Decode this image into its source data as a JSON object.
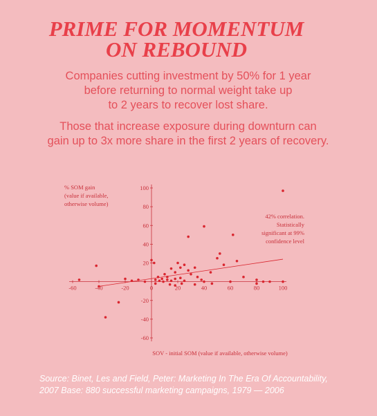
{
  "title_lines": [
    "PRIME FOR MOMENTUM",
    "ON REBOUND"
  ],
  "paragraphs": [
    [
      "Companies cutting investment by 50% for 1 year",
      "before returning to normal weight take up",
      "to 2 years to recover lost share."
    ],
    [
      "Those that increase exposure during downturn can",
      "gain up to 3x more share in the first 2 years of recovery."
    ]
  ],
  "chart_data": {
    "type": "scatter",
    "y_label_lines": [
      "% SOM gain",
      "(value if available,",
      "otherwise volume)"
    ],
    "x_label": "SOV - initial SOM (value if available, otherwise volume)",
    "annotation_lines": [
      "42% correlation.",
      "Statistically",
      "significant at 99%",
      "confidence level"
    ],
    "color": "#d9262f",
    "x": [
      100,
      40,
      28,
      62,
      -42,
      -55,
      -40,
      -25,
      -35,
      -20,
      -10,
      0,
      2,
      5,
      8,
      10,
      12,
      15,
      18,
      20,
      22,
      25,
      28,
      30,
      33,
      35,
      38,
      40,
      45,
      50,
      52,
      55,
      60,
      65,
      70,
      80,
      85,
      90,
      100,
      3,
      6,
      9,
      12,
      15,
      18,
      22,
      25,
      -5,
      -15,
      46,
      33,
      18,
      80,
      23,
      14,
      3
    ],
    "values": [
      97,
      59,
      48,
      50,
      17,
      2,
      -5,
      -22,
      -38,
      3,
      2,
      23,
      20,
      5,
      3,
      8,
      5,
      14,
      10,
      20,
      15,
      18,
      12,
      8,
      15,
      5,
      2,
      0,
      10,
      25,
      30,
      18,
      0,
      22,
      5,
      2,
      0,
      0,
      0,
      2,
      1,
      0,
      2,
      1,
      3,
      4,
      1,
      0,
      1,
      -2,
      -3,
      -4,
      -2,
      -2,
      -3,
      -2
    ],
    "trendline": {
      "x": [
        -40,
        100
      ],
      "values": [
        -5,
        24
      ]
    },
    "xlim": [
      -60,
      100
    ],
    "ylim": [
      -60,
      100
    ],
    "xticks": [
      -60,
      -40,
      -20,
      0,
      20,
      40,
      60,
      80,
      100
    ],
    "yticks": [
      -60,
      -40,
      -20,
      20,
      40,
      60,
      80,
      100
    ]
  },
  "source_lines": [
    "Source: Binet, Les and Field, Peter: Marketing In The Era Of Accountability,",
    "2007 Base: 880 successful marketing campaigns, 1979 — 2006"
  ]
}
